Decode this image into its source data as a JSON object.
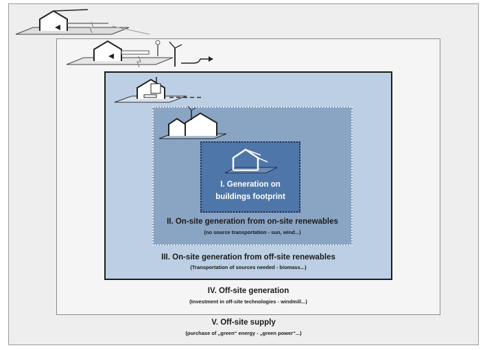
{
  "levels": {
    "level1": {
      "title": "I. Generation on buildings footprint",
      "title_line1": "I. Generation on",
      "title_line2": "buildings footprint"
    },
    "level2": {
      "title": "II. On-site generation from on-site renewables",
      "subtitle": "(no source transportation - sun, wind...)"
    },
    "level3": {
      "title": "III. On-site generation from off-site renewables",
      "subtitle": "(Transportation of sources needed - biomass...)"
    },
    "level4": {
      "title": "IV. Off-site generation",
      "subtitle": "(Investment in off-site technologies - windmill...)"
    },
    "level5": {
      "title": "V. Off-site supply",
      "subtitle": "(purchase of „green“ energy - „green power“...)"
    }
  },
  "colors": {
    "outer": "#eeeeee",
    "level4": "#f5f5f5",
    "level3": "#bccfe4",
    "level2": "#8aa4c3",
    "level1": "#4f76a8"
  },
  "icons": [
    "house-grid-icon",
    "house-windmill-icon",
    "house-biomass-icon",
    "houses-wind-icon",
    "house-footprint-icon"
  ]
}
